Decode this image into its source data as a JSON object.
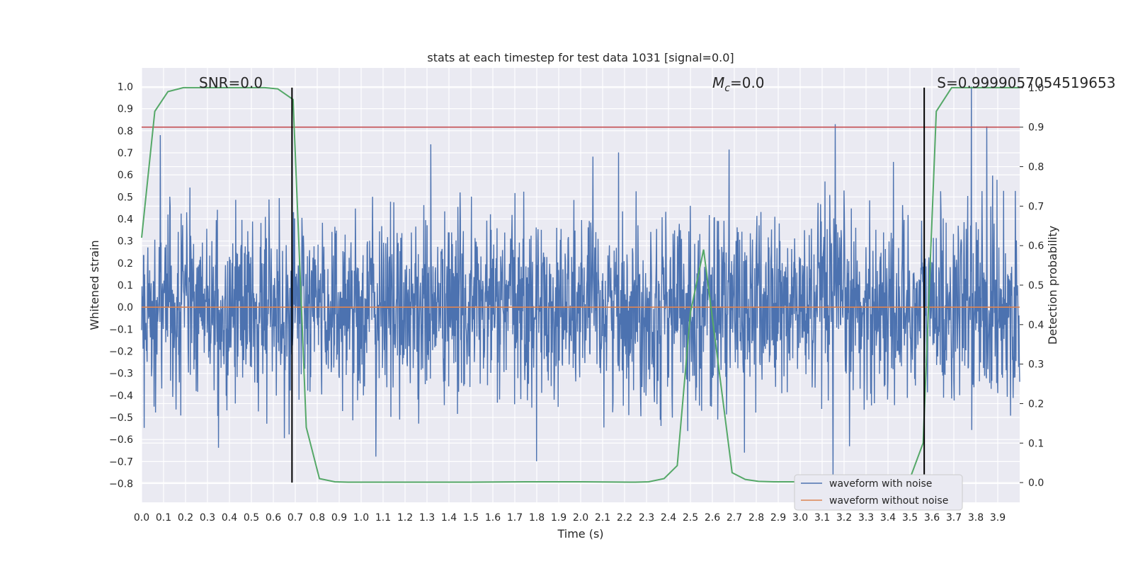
{
  "chart_data": {
    "type": "line",
    "title": "stats at each timestep for test data 1031 [signal=0.0]",
    "xlabel": "Time (s)",
    "ylabel": "Whitened strain",
    "y2label": "Detection probability",
    "xlim": [
      0.0,
      4.0
    ],
    "ylim": [
      -0.885,
      1.085
    ],
    "y2lim": [
      -0.05,
      1.05
    ],
    "x_ticks": [
      "0.0",
      "0.1",
      "0.2",
      "0.3",
      "0.4",
      "0.5",
      "0.6",
      "0.7",
      "0.8",
      "0.9",
      "1.0",
      "1.1",
      "1.2",
      "1.3",
      "1.4",
      "1.5",
      "1.6",
      "1.7",
      "1.8",
      "1.9",
      "2.0",
      "2.1",
      "2.2",
      "2.3",
      "2.4",
      "2.5",
      "2.6",
      "2.7",
      "2.8",
      "2.9",
      "3.0",
      "3.1",
      "3.2",
      "3.3",
      "3.4",
      "3.5",
      "3.6",
      "3.7",
      "3.8",
      "3.9"
    ],
    "y_ticks": [
      "−0.8",
      "−0.7",
      "−0.6",
      "−0.5",
      "−0.4",
      "−0.3",
      "−0.2",
      "−0.1",
      "0.0",
      "0.1",
      "0.2",
      "0.3",
      "0.4",
      "0.5",
      "0.6",
      "0.7",
      "0.8",
      "0.9",
      "1.0"
    ],
    "y2_ticks": [
      "0.0",
      "0.1",
      "0.2",
      "0.3",
      "0.4",
      "0.5",
      "0.6",
      "0.7",
      "0.8",
      "0.9",
      "1.0"
    ],
    "grid": true,
    "legend_position": "lower-right",
    "annotations": [
      {
        "text": "SNR=0.0",
        "x": 0.2
      },
      {
        "text": "=0.0",
        "x": 2.6,
        "prefix_symbol": "M",
        "prefix_sub": "c"
      },
      {
        "text": "S=0.9999057054519653",
        "x": 3.63
      }
    ],
    "vertical_lines": [
      0.685,
      3.565
    ],
    "threshold_line": {
      "y2": 0.9,
      "color": "#c44e52"
    },
    "series": [
      {
        "name": "waveform with noise",
        "color": "#4c72b0",
        "style": "noise",
        "x_range": [
          0.0,
          4.0
        ],
        "y_range": [
          -0.78,
          1.0
        ],
        "peaks": [
          {
            "x": 0.085,
            "y": 0.78
          },
          {
            "x": 3.16,
            "y": 0.83
          },
          {
            "x": 3.78,
            "y": 1.0
          },
          {
            "x": 3.85,
            "y": 0.82
          },
          {
            "x": 0.685,
            "y": 0.9
          },
          {
            "x": 3.15,
            "y": -0.78
          }
        ]
      },
      {
        "name": "waveform without noise",
        "color": "#dd8452",
        "x": [
          0.0,
          4.0
        ],
        "y": [
          0.0,
          0.0
        ]
      },
      {
        "name": "",
        "color": "#55a868",
        "axis": "y2",
        "x": [
          0.0,
          0.06,
          0.12,
          0.19,
          0.25,
          0.31,
          0.38,
          0.44,
          0.5,
          0.56,
          0.62,
          0.69,
          0.75,
          0.81,
          0.88,
          0.94,
          1.0,
          1.25,
          1.5,
          1.75,
          2.0,
          2.25,
          2.31,
          2.38,
          2.44,
          2.5,
          2.56,
          2.62,
          2.69,
          2.75,
          2.81,
          2.88,
          3.0,
          3.25,
          3.5,
          3.56,
          3.62,
          3.69,
          3.75,
          3.81,
          3.88,
          4.0
        ],
        "y": [
          0.62,
          0.94,
          0.99,
          1.0,
          1.0,
          1.0,
          1.0,
          1.0,
          1.0,
          1.0,
          0.997,
          0.97,
          0.14,
          0.01,
          0.002,
          0.001,
          0.001,
          0.001,
          0.001,
          0.002,
          0.002,
          0.001,
          0.002,
          0.01,
          0.043,
          0.43,
          0.59,
          0.33,
          0.025,
          0.008,
          0.003,
          0.002,
          0.002,
          0.002,
          0.01,
          0.1,
          0.94,
          1.0,
          1.0,
          1.0,
          1.0,
          1.0
        ]
      }
    ]
  }
}
